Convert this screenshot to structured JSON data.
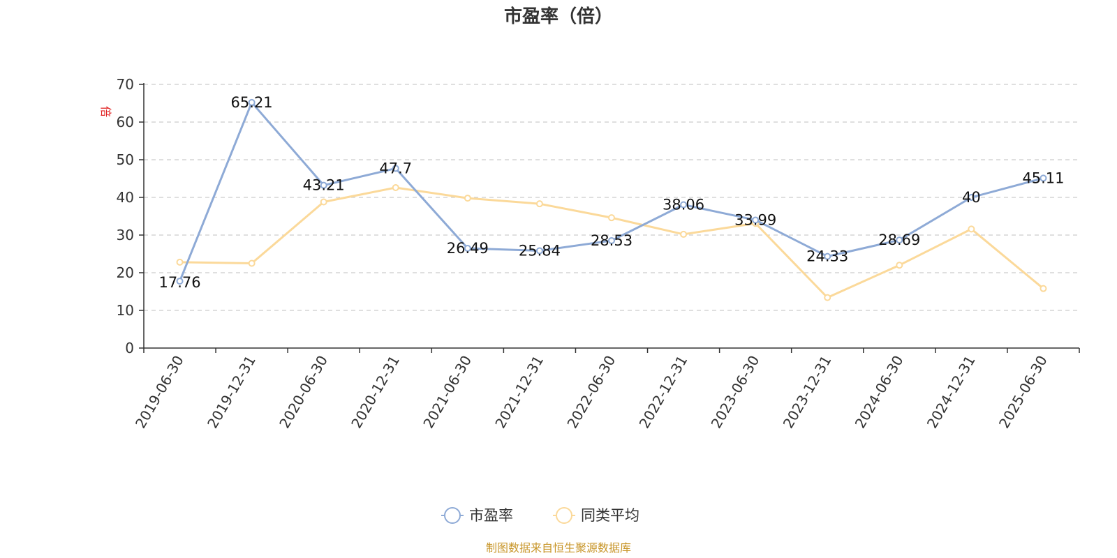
{
  "title": "市盈率（倍）",
  "source_note": "制图数据来自恒生聚源数据库",
  "chart_data": {
    "type": "line",
    "title": "市盈率（倍）",
    "ylabel": "倍",
    "ylim": [
      0,
      70
    ],
    "yticks": [
      "0",
      "10",
      "20",
      "30",
      "40",
      "50",
      "60",
      "70"
    ],
    "grid": true,
    "legend_position": "bottom",
    "categories": [
      "2019-06-30",
      "2019-12-31",
      "2020-06-30",
      "2020-12-31",
      "2021-06-30",
      "2021-12-31",
      "2022-06-30",
      "2022-12-31",
      "2023-06-30",
      "2023-12-31",
      "2024-06-30",
      "2024-12-31",
      "2025-06-30"
    ],
    "series": [
      {
        "name": "市盈率",
        "color": "#8eaad6",
        "values": [
          17.76,
          65.21,
          43.21,
          47.7,
          26.49,
          25.84,
          28.53,
          38.06,
          33.99,
          24.33,
          28.69,
          40,
          45.11
        ],
        "labels": [
          "17.76",
          "65.21",
          "43.21",
          "47.7",
          "26.49",
          "25.84",
          "28.53",
          "38.06",
          "33.99",
          "24.33",
          "28.69",
          "40",
          "45.11"
        ]
      },
      {
        "name": "同类平均",
        "color": "#fbd99a",
        "values": [
          22.8,
          22.5,
          38.8,
          42.6,
          39.8,
          38.3,
          34.6,
          30.2,
          33.1,
          13.4,
          22.0,
          31.6,
          15.8
        ]
      }
    ]
  }
}
